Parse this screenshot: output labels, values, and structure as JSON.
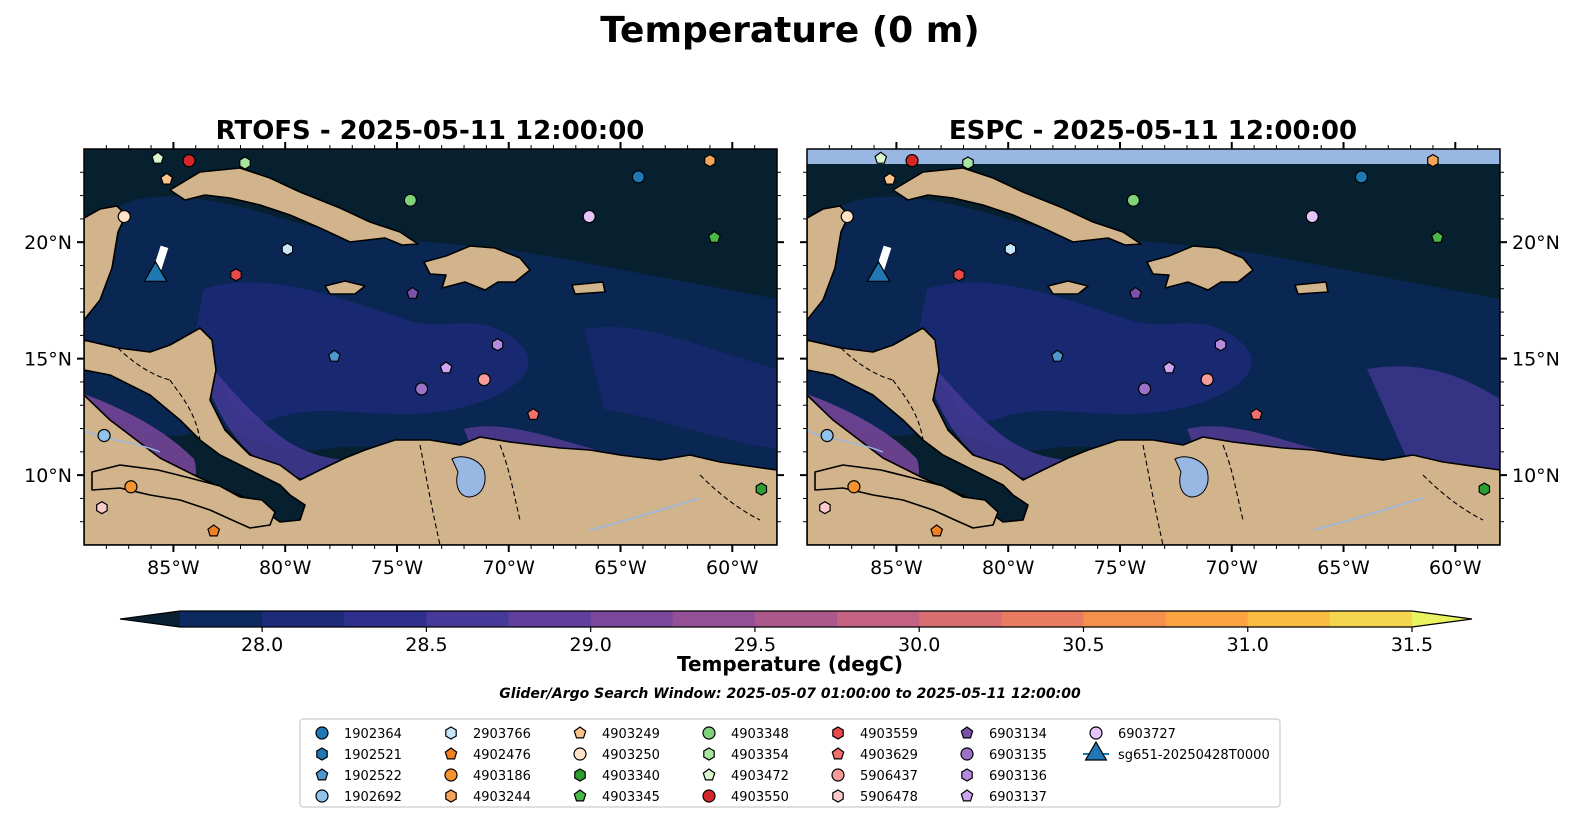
{
  "chart_data": {
    "type": "map",
    "title": "Temperature (0 m)",
    "subtitle": "Glider/Argo Search Window: 2025-05-07 01:00:00 to 2025-05-11 12:00:00",
    "panels": [
      {
        "title": "RTOFS - 2025-05-11 12:00:00",
        "lat_tick_side": "left",
        "top_band": false
      },
      {
        "title": "ESPC - 2025-05-11 12:00:00",
        "lat_tick_side": "right",
        "top_band": true
      }
    ],
    "lon_range": [
      -89,
      -58
    ],
    "lat_range": [
      7,
      24
    ],
    "x_ticks": [
      {
        "value": -85,
        "label": "85°W"
      },
      {
        "value": -80,
        "label": "80°W"
      },
      {
        "value": -75,
        "label": "75°W"
      },
      {
        "value": -70,
        "label": "70°W"
      },
      {
        "value": -65,
        "label": "65°W"
      },
      {
        "value": -60,
        "label": "60°W"
      }
    ],
    "y_ticks": [
      {
        "value": 20,
        "label": "20°N"
      },
      {
        "value": 15,
        "label": "15°N"
      },
      {
        "value": 10,
        "label": "10°N"
      }
    ],
    "colorbar": {
      "label": "Temperature (degC)",
      "range": [
        27.75,
        31.5
      ],
      "ticks": [
        {
          "value": 28.0,
          "label": "28.0"
        },
        {
          "value": 28.5,
          "label": "28.5"
        },
        {
          "value": 29.0,
          "label": "29.0"
        },
        {
          "value": 29.5,
          "label": "29.5"
        },
        {
          "value": 30.0,
          "label": "30.0"
        },
        {
          "value": 30.5,
          "label": "30.5"
        },
        {
          "value": 31.0,
          "label": "31.0"
        },
        {
          "value": 31.5,
          "label": "31.5"
        }
      ],
      "colors": [
        "#0a2134",
        "#0c2a60",
        "#1d2b79",
        "#2f2f8e",
        "#47399a",
        "#613f9e",
        "#7a479c",
        "#944f96",
        "#ad588c",
        "#c46284",
        "#d96e72",
        "#e97c60",
        "#f58f4d",
        "#fba241",
        "#fbbd41",
        "#f4d54e",
        "#e8f35f"
      ]
    },
    "colors": {
      "ocean": "#07202f",
      "land": "#d2b48c",
      "lake": "#99b7e3",
      "band": "#99b7e3"
    },
    "legend": {
      "columns": 7,
      "items": [
        {
          "label": "1902364",
          "marker": "circle",
          "color": "#1f77b4",
          "lon": -64.2,
          "lat": 22.8
        },
        {
          "label": "1902521",
          "marker": "hexagon",
          "color": "#1f77b4",
          "lon": null,
          "lat": null
        },
        {
          "label": "1902522",
          "marker": "pentagon",
          "color": "#4f97cf",
          "lon": -77.8,
          "lat": 15.1
        },
        {
          "label": "1902692",
          "marker": "circle",
          "color": "#8fc3ea",
          "lon": -88.1,
          "lat": 11.7
        },
        {
          "label": "2903766",
          "marker": "hexagon",
          "color": "#c8e6fa",
          "lon": -79.9,
          "lat": 19.7
        },
        {
          "label": "4902476",
          "marker": "pentagon",
          "color": "#f08020",
          "lon": -83.2,
          "lat": 7.6
        },
        {
          "label": "4903186",
          "marker": "circle",
          "color": "#f5932f",
          "lon": -86.9,
          "lat": 9.5
        },
        {
          "label": "4903244",
          "marker": "hexagon",
          "color": "#f5a55a",
          "lon": -61.0,
          "lat": 23.5
        },
        {
          "label": "4903249",
          "marker": "pentagon",
          "color": "#fac48a",
          "lon": -85.3,
          "lat": 22.7
        },
        {
          "label": "4903250",
          "marker": "circle",
          "color": "#fde2c6",
          "lon": -87.2,
          "lat": 21.1
        },
        {
          "label": "4903340",
          "marker": "hexagon",
          "color": "#2e9e34",
          "lon": -58.7,
          "lat": 9.4
        },
        {
          "label": "4903345",
          "marker": "pentagon",
          "color": "#48b848",
          "lon": -60.8,
          "lat": 20.2
        },
        {
          "label": "4903348",
          "marker": "circle",
          "color": "#7fd17a",
          "lon": -74.4,
          "lat": 21.8
        },
        {
          "label": "4903354",
          "marker": "hexagon",
          "color": "#a8e5a0",
          "lon": -81.8,
          "lat": 23.4
        },
        {
          "label": "4903472",
          "marker": "pentagon",
          "color": "#d8f7cf",
          "lon": -85.7,
          "lat": 23.6
        },
        {
          "label": "4903550",
          "marker": "circle",
          "color": "#d62728",
          "lon": -84.3,
          "lat": 23.5
        },
        {
          "label": "4903559",
          "marker": "hexagon",
          "color": "#e8494a",
          "lon": -82.2,
          "lat": 18.6
        },
        {
          "label": "4903629",
          "marker": "pentagon",
          "color": "#f26f6f",
          "lon": -68.9,
          "lat": 12.6
        },
        {
          "label": "5906437",
          "marker": "circle",
          "color": "#f79a9a",
          "lon": -71.1,
          "lat": 14.1
        },
        {
          "label": "5906478",
          "marker": "hexagon",
          "color": "#fccaca",
          "lon": -88.2,
          "lat": 8.6
        },
        {
          "label": "6903134",
          "marker": "pentagon",
          "color": "#7b52ab",
          "lon": -74.3,
          "lat": 17.8
        },
        {
          "label": "6903135",
          "marker": "circle",
          "color": "#9b72c8",
          "lon": -73.9,
          "lat": 13.7
        },
        {
          "label": "6903136",
          "marker": "hexagon",
          "color": "#b58be0",
          "lon": -70.5,
          "lat": 15.6
        },
        {
          "label": "6903137",
          "marker": "pentagon",
          "color": "#cfa5f0",
          "lon": -72.8,
          "lat": 14.6
        },
        {
          "label": "6903727",
          "marker": "circle",
          "color": "#e5c4fa",
          "lon": -66.4,
          "lat": 21.1
        },
        {
          "label": "sg651-20250428T0000",
          "marker": "triangle",
          "color": "#1f77b4",
          "lon": -85.8,
          "lat": 18.6,
          "track": [
            [
              -85.4,
              19.8
            ],
            [
              -85.8,
              18.6
            ]
          ]
        }
      ]
    }
  }
}
